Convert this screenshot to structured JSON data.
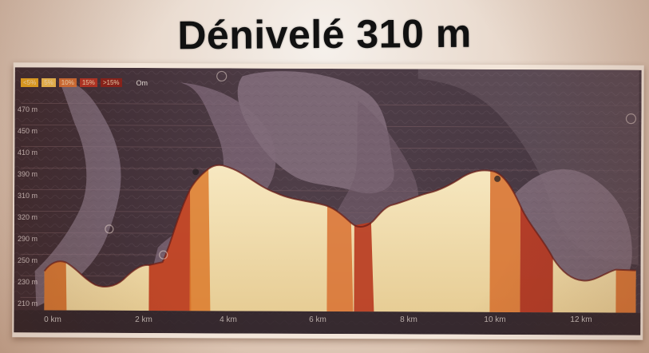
{
  "image": {
    "title": "Dénivelé 310 m",
    "legend": {
      "labels": [
        "<5%",
        "5%",
        "10%",
        "15%",
        ">15%"
      ],
      "colors": [
        "#e7a21f",
        "#f1b94c",
        "#d36b2f",
        "#b73322",
        "#8e2118"
      ],
      "end_label": "Om"
    },
    "y_labels": [
      "470 m",
      "450 m",
      "410 m",
      "390 m",
      "310 m",
      "320 m",
      "290 m",
      "250 m",
      "230 m",
      "210 m"
    ],
    "x_labels": [
      "0 km",
      "2 km",
      "4 km",
      "6 km",
      "8 km",
      "10 km",
      "12 km"
    ],
    "visual": {
      "background": "#caa88f",
      "card": "#f3e6da",
      "plot": "#4b3b45",
      "terrain": "#7b6472",
      "profile_fill": "#f0ddae",
      "profile_dark": "#bd4a24"
    }
  }
}
